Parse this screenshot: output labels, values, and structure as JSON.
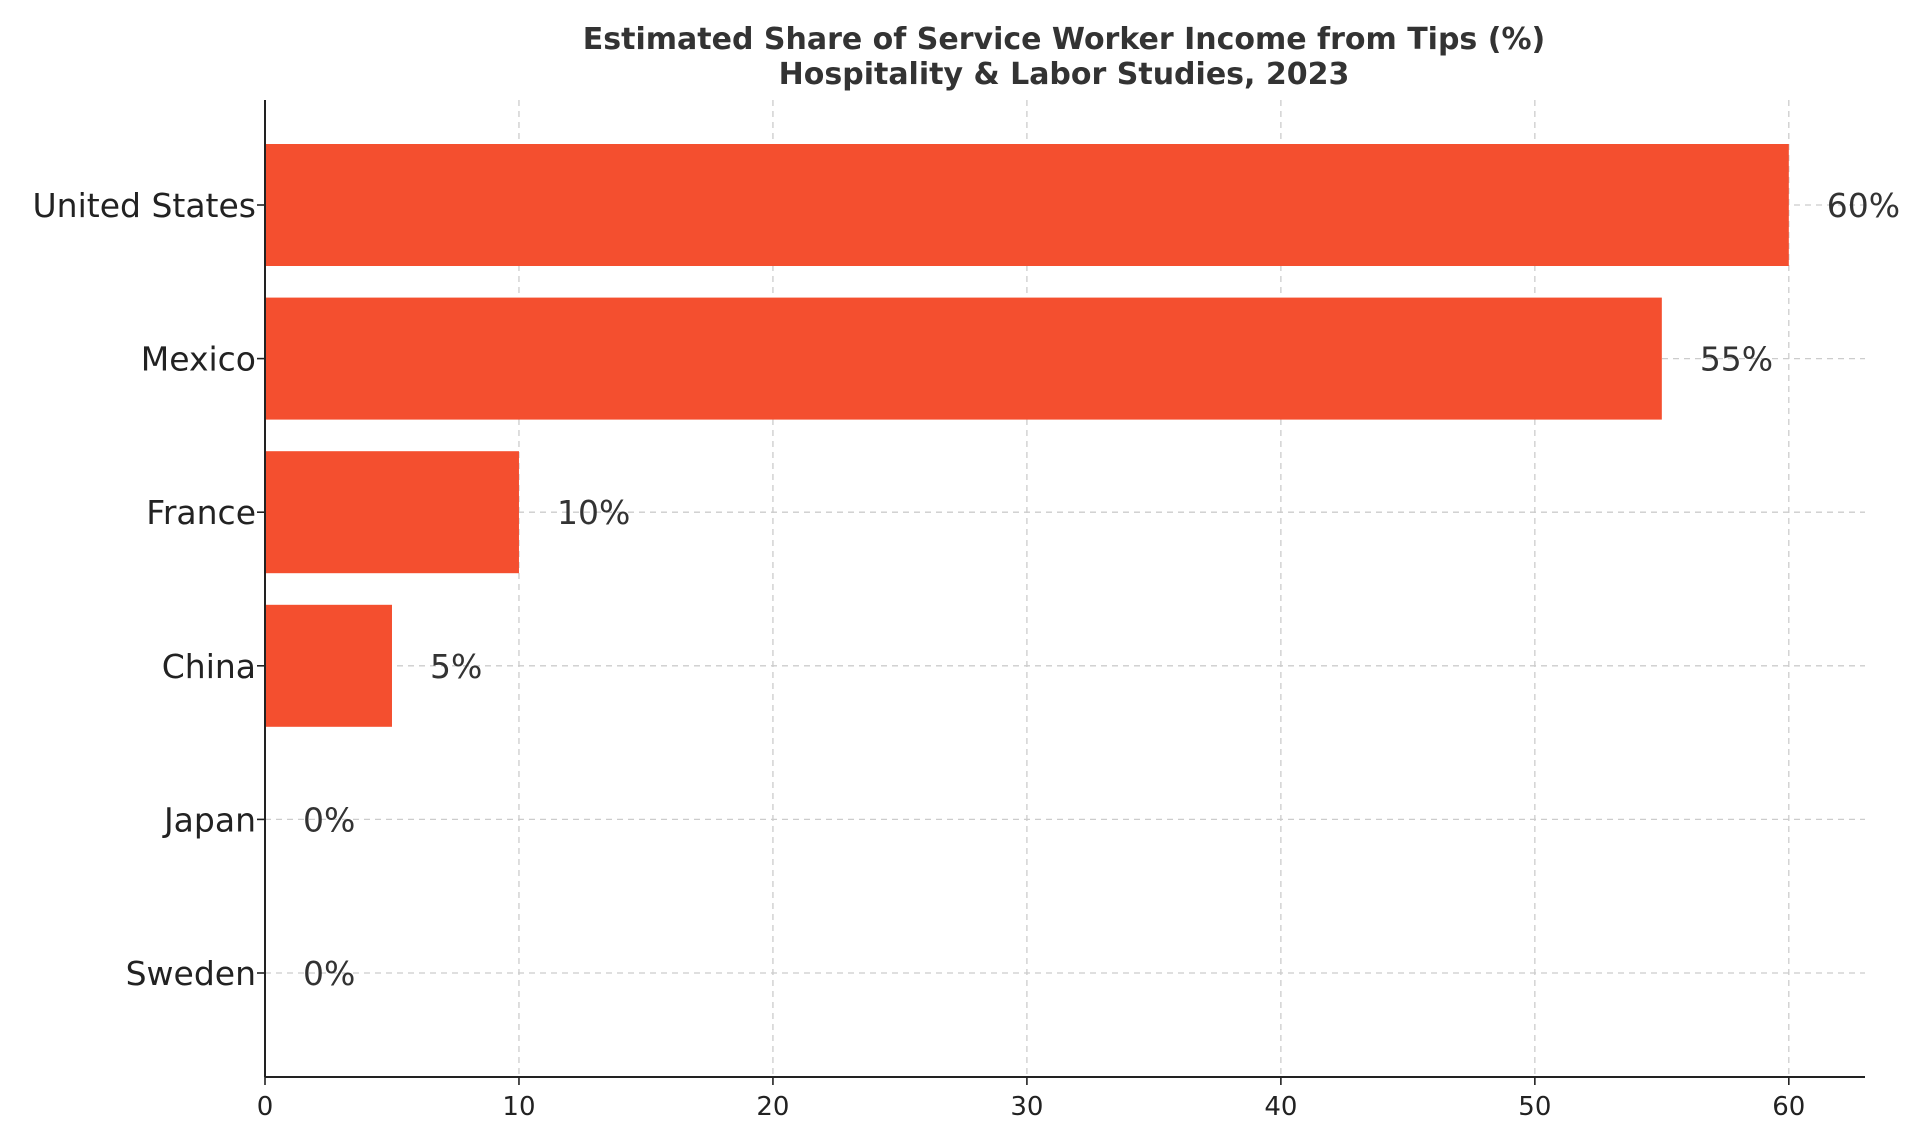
{
  "chart_data": {
    "type": "bar",
    "orientation": "horizontal",
    "title": "Estimated Share of Service Worker Income from Tips (%)",
    "subtitle": "Hospitality & Labor Studies, 2023",
    "xlabel": "",
    "ylabel": "",
    "categories": [
      "United States",
      "Mexico",
      "France",
      "China",
      "Japan",
      "Sweden"
    ],
    "values": [
      60,
      55,
      10,
      5,
      0,
      0
    ],
    "value_labels": [
      "60%",
      "55%",
      "10%",
      "5%",
      "0%",
      "0%"
    ],
    "xlim": [
      0,
      63
    ],
    "xticks": [
      0,
      10,
      20,
      30,
      40,
      50,
      60
    ],
    "xtick_labels": [
      "0",
      "10",
      "20",
      "30",
      "40",
      "50",
      "60"
    ],
    "grid": true,
    "bar_color": "#f44f2f"
  }
}
